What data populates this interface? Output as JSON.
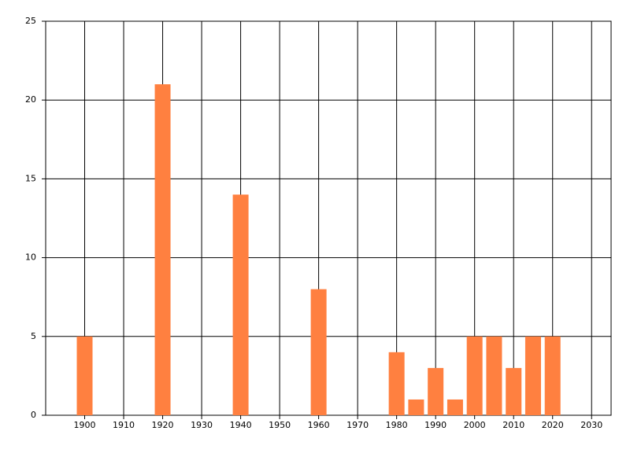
{
  "chart_data": {
    "type": "bar",
    "x": [
      1900,
      1920,
      1940,
      1960,
      1980,
      1985,
      1990,
      1995,
      2000,
      2005,
      2010,
      2015,
      2020
    ],
    "values": [
      5,
      21,
      14,
      8,
      4,
      1,
      3,
      1,
      5,
      5,
      3,
      5,
      5
    ],
    "color": "#ff8040",
    "xlim": [
      1890,
      2035
    ],
    "xticks": [
      1900,
      1910,
      1920,
      1930,
      1940,
      1950,
      1960,
      1970,
      1980,
      1990,
      2000,
      2010,
      2020,
      2030
    ],
    "ylim": [
      0,
      25
    ],
    "yticks": [
      0,
      5,
      10,
      15,
      20,
      25
    ],
    "grid": true
  }
}
